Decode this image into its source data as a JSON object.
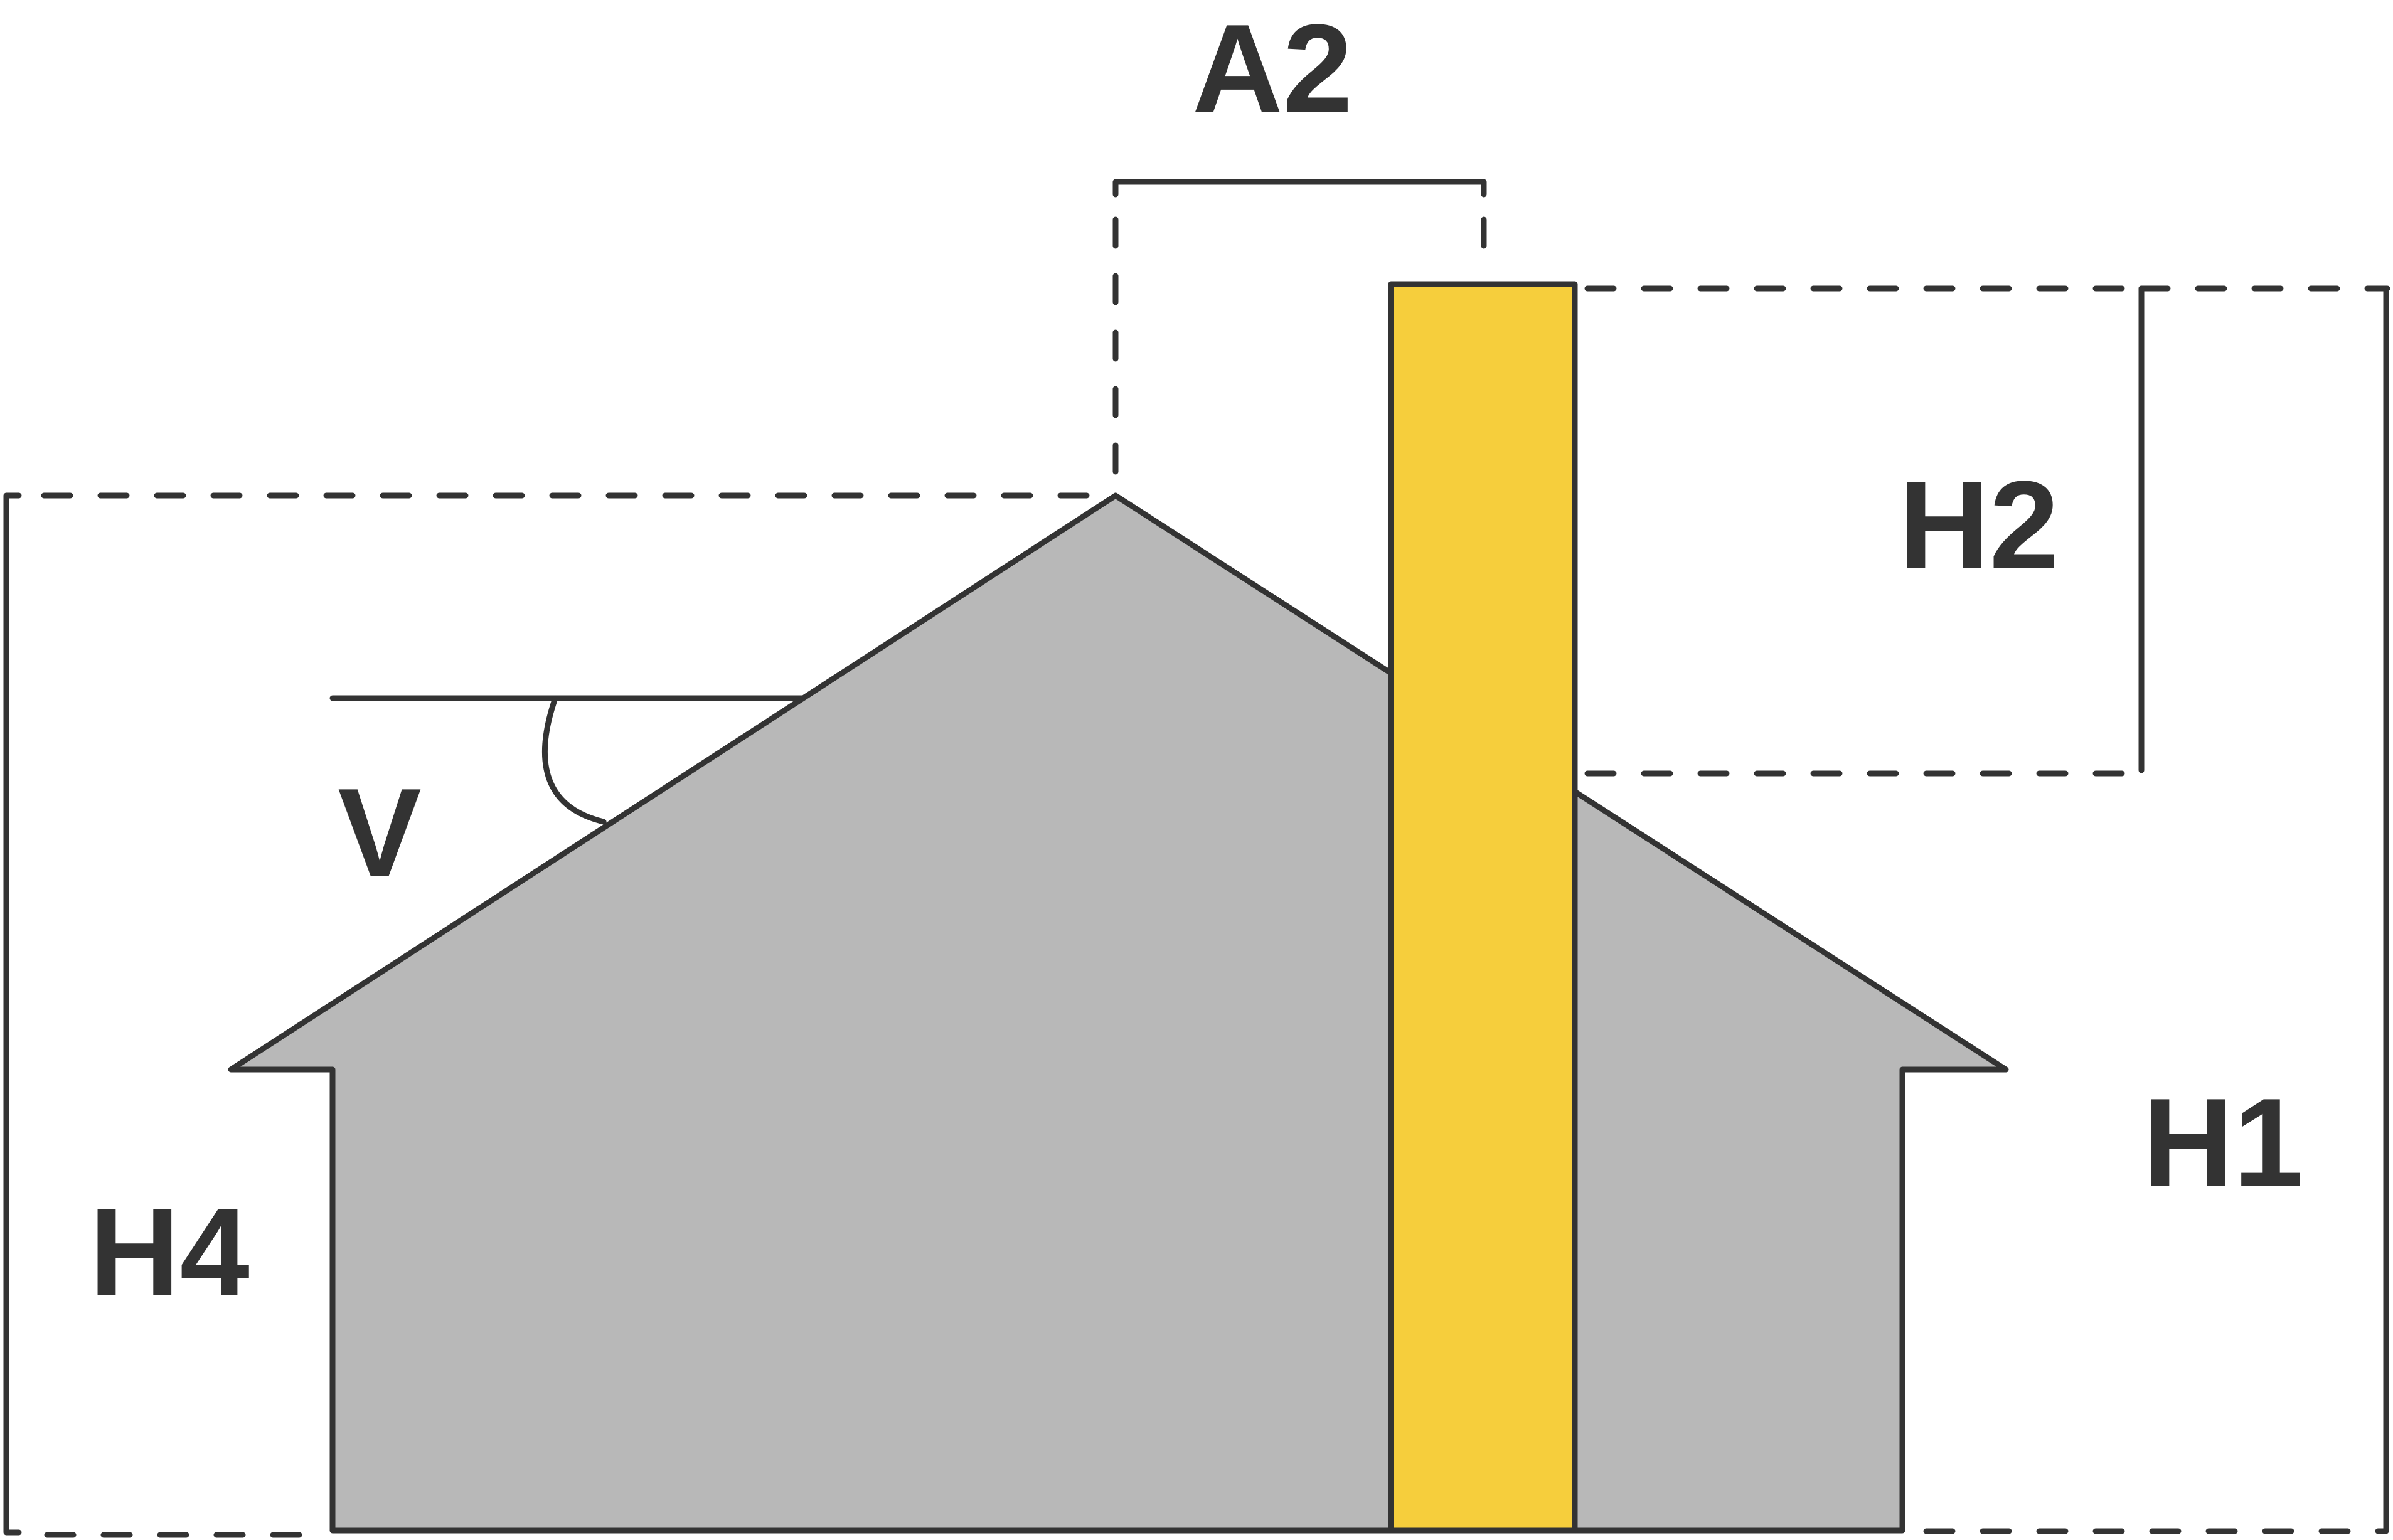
{
  "labels": {
    "a2": "A2",
    "h1": "H1",
    "h2": "H2",
    "h4": "H4",
    "v": "V"
  },
  "colors": {
    "outline": "#333333",
    "house_fill": "#b8b8b8",
    "chimney_fill": "#f6ce3c",
    "background": "#ffffff"
  }
}
